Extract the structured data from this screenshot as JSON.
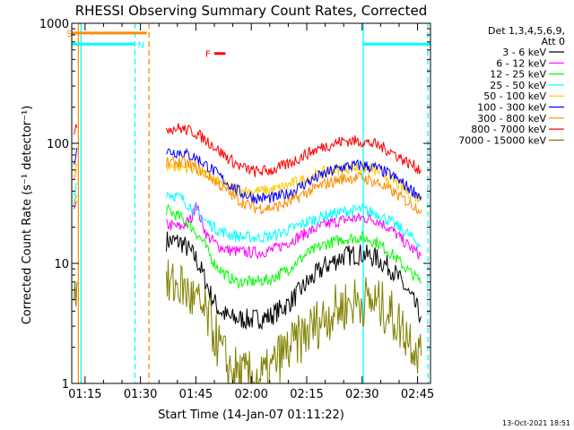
{
  "chart_data": {
    "type": "line",
    "title": "RHESSI Observing Summary Count Rates, Corrected",
    "xlabel": "Start Time (14-Jan-07 01:11:22)",
    "ylabel": "Corrected Count Rate (s⁻¹ detector⁻¹)",
    "x_unit": "minutes after 01:00 UT",
    "xlim": [
      71.4,
      168.5
    ],
    "ylim": [
      1,
      1000
    ],
    "yscale": "log",
    "x_ticks": [
      {
        "at": 75,
        "label": "01:15"
      },
      {
        "at": 90,
        "label": "01:30"
      },
      {
        "at": 105,
        "label": "01:45"
      },
      {
        "at": 120,
        "label": "02:00"
      },
      {
        "at": 135,
        "label": "02:15"
      },
      {
        "at": 150,
        "label": "02:30"
      },
      {
        "at": 165,
        "label": "02:45"
      }
    ],
    "y_ticks": [
      {
        "at": 1,
        "label": "1"
      },
      {
        "at": 10,
        "label": "10"
      },
      {
        "at": 100,
        "label": "100"
      },
      {
        "at": 1000,
        "label": "1000"
      }
    ],
    "legend_header": [
      "Det 1,3,4,5,6,9,",
      "Att 0"
    ],
    "legend_position": "right",
    "timestamp": "13-Oct-2021 18:51",
    "series": [
      {
        "name": "3 - 6 keV",
        "color": "#000000",
        "segments": [
          [
            [
              97,
              15.5
            ],
            [
              101,
              15
            ],
            [
              103,
              13
            ],
            [
              105,
              11
            ],
            [
              107,
              8
            ],
            [
              109,
              5.5
            ],
            [
              111,
              4.2
            ],
            [
              114,
              3.5
            ],
            [
              120,
              3.4
            ],
            [
              125,
              3.6
            ],
            [
              130,
              4.6
            ],
            [
              135,
              6.8
            ],
            [
              140,
              9.5
            ],
            [
              145,
              11.5
            ],
            [
              150,
              12
            ],
            [
              154,
              11
            ],
            [
              158,
              9
            ],
            [
              162,
              6
            ],
            [
              166,
              3.6
            ]
          ]
        ]
      },
      {
        "name": "6 - 12 keV",
        "color": "#ff00ff",
        "segments": [
          [
            [
              72,
              26
            ],
            [
              72.8,
              33
            ]
          ],
          [
            [
              97,
              21
            ],
            [
              101,
              20
            ],
            [
              104,
              24
            ],
            [
              105,
              33
            ],
            [
              106,
              25
            ],
            [
              108,
              17
            ],
            [
              111,
              14
            ],
            [
              114,
              12.8
            ],
            [
              118,
              12.4
            ],
            [
              122,
              12.3
            ],
            [
              126,
              13
            ],
            [
              130,
              15
            ],
            [
              135,
              18
            ],
            [
              140,
              21
            ],
            [
              145,
              23
            ],
            [
              150,
              24
            ],
            [
              154,
              23
            ],
            [
              158,
              19
            ],
            [
              162,
              14.5
            ],
            [
              166,
              11.5
            ]
          ]
        ]
      },
      {
        "name": "12 - 25 keV",
        "color": "#00ff00",
        "segments": [
          [
            [
              72,
              30
            ],
            [
              72.8,
              37
            ]
          ],
          [
            [
              97,
              28
            ],
            [
              101,
              24
            ],
            [
              104,
              20
            ],
            [
              107,
              15
            ],
            [
              110,
              10
            ],
            [
              113,
              8
            ],
            [
              116,
              7
            ],
            [
              120,
              7
            ],
            [
              125,
              7.3
            ],
            [
              130,
              9
            ],
            [
              135,
              12
            ],
            [
              140,
              14.5
            ],
            [
              145,
              16
            ],
            [
              150,
              16.5
            ],
            [
              154,
              15
            ],
            [
              158,
              12
            ],
            [
              162,
              9
            ],
            [
              166,
              7
            ]
          ]
        ]
      },
      {
        "name": "25 - 50 keV",
        "color": "#00ffff",
        "segments": [
          [
            [
              72,
              38
            ],
            [
              72.8,
              47
            ]
          ],
          [
            [
              97,
              39
            ],
            [
              101,
              35
            ],
            [
              105,
              27
            ],
            [
              108,
              22
            ],
            [
              111,
              19
            ],
            [
              114,
              17.5
            ],
            [
              118,
              16.5
            ],
            [
              122,
              16.4
            ],
            [
              126,
              17
            ],
            [
              130,
              19
            ],
            [
              135,
              22
            ],
            [
              140,
              25
            ],
            [
              145,
              27
            ],
            [
              150,
              28
            ],
            [
              154,
              26
            ],
            [
              158,
              22
            ],
            [
              162,
              18
            ],
            [
              166,
              14
            ]
          ]
        ]
      },
      {
        "name": "50 - 100 keV",
        "color": "#ffc800",
        "segments": [
          [
            [
              72,
              55
            ],
            [
              72.8,
              65
            ]
          ],
          [
            [
              97,
              64
            ],
            [
              101,
              64
            ],
            [
              105,
              61
            ],
            [
              109,
              52
            ],
            [
              113,
              44
            ],
            [
              118,
              40
            ],
            [
              122,
              40
            ],
            [
              126,
              41
            ],
            [
              130,
              45
            ],
            [
              135,
              51
            ],
            [
              140,
              58
            ],
            [
              145,
              62
            ],
            [
              150,
              63
            ],
            [
              154,
              59
            ],
            [
              158,
              50
            ],
            [
              162,
              40
            ],
            [
              166,
              34
            ]
          ]
        ]
      },
      {
        "name": "100 - 300 keV",
        "color": "#0000ff",
        "segments": [
          [
            [
              72,
              72
            ],
            [
              72.8,
              92
            ]
          ],
          [
            [
              97,
              86
            ],
            [
              101,
              84
            ],
            [
              105,
              76
            ],
            [
              109,
              62
            ],
            [
              113,
              48
            ],
            [
              117,
              39
            ],
            [
              121,
              35
            ],
            [
              126,
              35
            ],
            [
              130,
              38
            ],
            [
              135,
              47
            ],
            [
              140,
              56
            ],
            [
              145,
              64
            ],
            [
              150,
              66
            ],
            [
              154,
              62
            ],
            [
              158,
              54
            ],
            [
              162,
              44
            ],
            [
              166,
              36
            ]
          ]
        ]
      },
      {
        "name": "300 - 800 keV",
        "color": "#ff8c00",
        "segments": [
          [
            [
              72,
              48
            ],
            [
              72.8,
              60
            ]
          ],
          [
            [
              97,
              68
            ],
            [
              101,
              70
            ],
            [
              105,
              63
            ],
            [
              109,
              52
            ],
            [
              113,
              41
            ],
            [
              117,
              33
            ],
            [
              121,
              29
            ],
            [
              126,
              29
            ],
            [
              130,
              32
            ],
            [
              135,
              39
            ],
            [
              140,
              46
            ],
            [
              145,
              51
            ],
            [
              150,
              52
            ],
            [
              154,
              47
            ],
            [
              158,
              40
            ],
            [
              162,
              33
            ],
            [
              166,
              28
            ]
          ]
        ]
      },
      {
        "name": "800 - 7000 keV",
        "color": "#ff0000",
        "segments": [
          [
            [
              72,
              115
            ],
            [
              72.8,
              135
            ]
          ],
          [
            [
              97,
              135
            ],
            [
              101,
              133
            ],
            [
              105,
              122
            ],
            [
              109,
              100
            ],
            [
              113,
              78
            ],
            [
              117,
              64
            ],
            [
              121,
              58
            ],
            [
              126,
              60
            ],
            [
              130,
              67
            ],
            [
              135,
              82
            ],
            [
              140,
              95
            ],
            [
              145,
              105
            ],
            [
              150,
              104
            ],
            [
              154,
              97
            ],
            [
              158,
              85
            ],
            [
              162,
              70
            ],
            [
              166,
              60
            ]
          ]
        ]
      },
      {
        "name": "7000 - 15000 keV",
        "color": "#808000",
        "segments": [
          [
            [
              72,
              6
            ],
            [
              72.8,
              7
            ]
          ],
          [
            [
              97,
              6.5
            ],
            [
              101,
              6.5
            ],
            [
              103,
              5.5
            ],
            [
              106,
              4.3
            ],
            [
              109,
              3.2
            ],
            [
              111,
              2.1
            ],
            [
              114,
              1.35
            ],
            [
              118,
              1.15
            ],
            [
              122,
              1.1
            ],
            [
              125,
              1.2
            ],
            [
              127,
              1.6
            ],
            [
              130,
              1.9
            ],
            [
              133,
              2.3
            ],
            [
              137,
              3.0
            ],
            [
              140,
              3.6
            ],
            [
              144,
              4.3
            ],
            [
              148,
              4.8
            ],
            [
              151,
              4.9
            ],
            [
              154,
              4.6
            ],
            [
              157,
              4.0
            ],
            [
              160,
              3.1
            ],
            [
              163,
              2.4
            ],
            [
              166,
              1.7
            ]
          ]
        ]
      }
    ],
    "bands": [
      {
        "label": "S",
        "color": "#ff8c00",
        "x": [
          71.4,
          91.7
        ],
        "y": 830
      },
      {
        "label": "N",
        "color": "#00ffff",
        "x": [
          71.4,
          88.5
        ],
        "y": 670
      },
      {
        "label": "",
        "color": "#00ffff",
        "x": [
          150.5,
          168.5
        ],
        "y": 670
      },
      {
        "label": "F",
        "color": "#ff0000",
        "x": [
          110,
          113
        ],
        "y": 560
      }
    ],
    "vlines": [
      {
        "x": 73.2,
        "color": "#ff8c00",
        "style": "solid"
      },
      {
        "x": 73.9,
        "color": "#00ffff",
        "style": "solid"
      },
      {
        "x": 88.5,
        "color": "#00ffff",
        "style": "dashed"
      },
      {
        "x": 92.3,
        "color": "#ff8c00",
        "style": "dashed"
      },
      {
        "x": 150.3,
        "color": "#00ffff",
        "style": "solid"
      },
      {
        "x": 167.8,
        "color": "#00ffff",
        "style": "dashed"
      }
    ]
  }
}
